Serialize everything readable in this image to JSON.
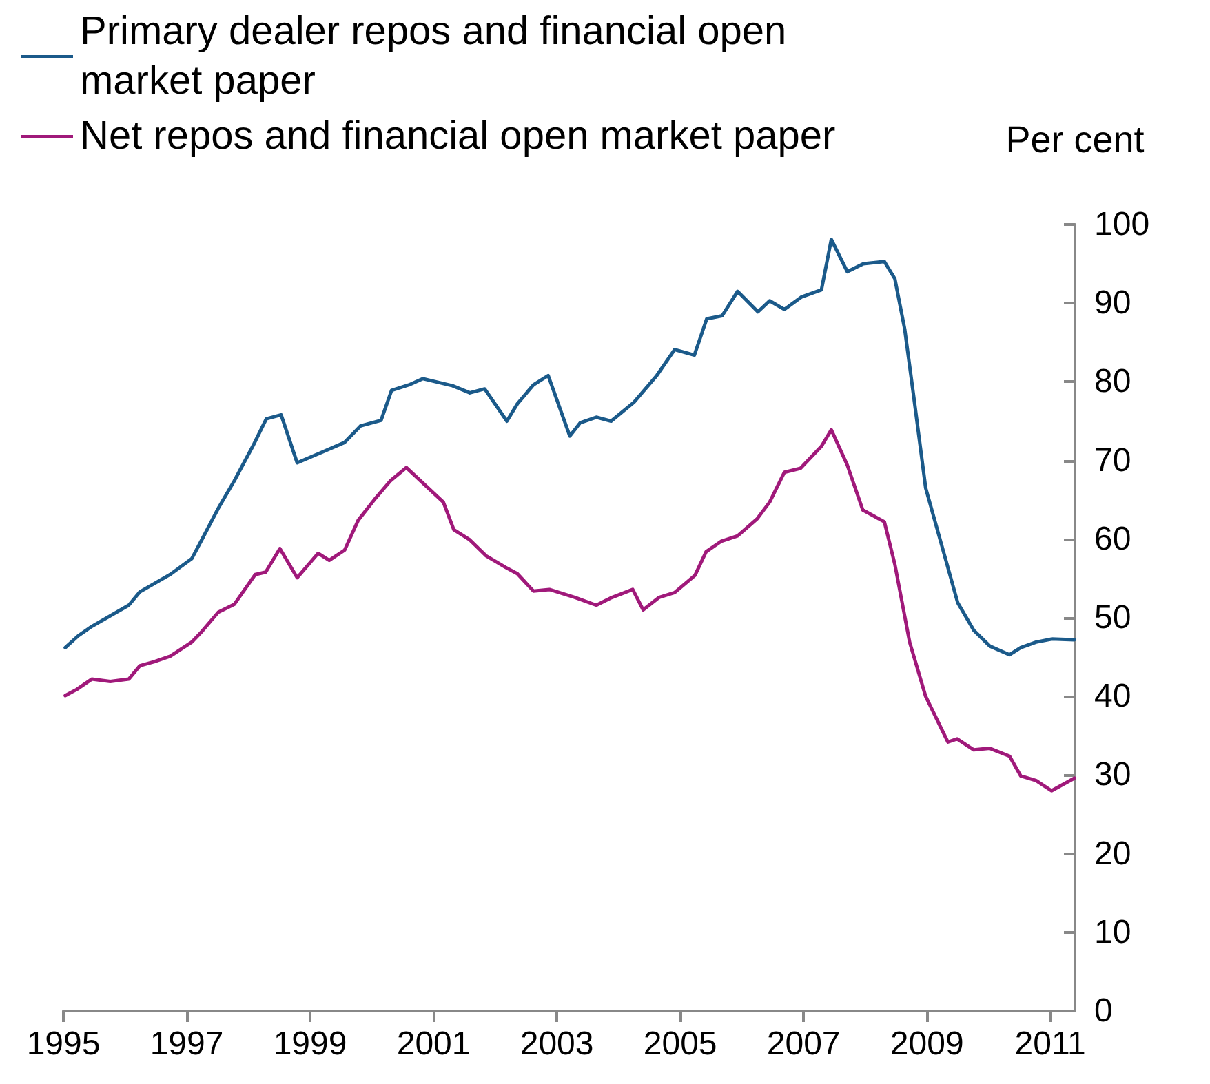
{
  "chart_data": {
    "type": "line",
    "ylabel": "Per cent",
    "xlim": [
      1995,
      2011.4
    ],
    "xticks": [
      1995,
      1997,
      1999,
      2001,
      2003,
      2005,
      2007,
      2009,
      2011
    ],
    "ylim": [
      0,
      100
    ],
    "yticks": [
      0,
      10,
      20,
      30,
      40,
      50,
      60,
      70,
      80,
      90,
      100
    ],
    "grid": false,
    "legend": "top left",
    "marker": "none",
    "line_style": "solid",
    "series": [
      {
        "name": "Primary dealer repos and financial open market paper",
        "color": "#1b5a8a",
        "x": [
          1995.03,
          1995.24,
          1995.46,
          1996.06,
          1996.24,
          1996.73,
          1997.08,
          1997.25,
          1997.51,
          1997.77,
          1998.07,
          1998.29,
          1998.53,
          1998.79,
          1999.15,
          1999.56,
          1999.82,
          2000.15,
          2000.32,
          2000.6,
          2000.83,
          2001.31,
          2001.59,
          2001.83,
          2002.19,
          2002.36,
          2002.62,
          2002.86,
          2003.21,
          2003.38,
          2003.64,
          2003.88,
          2004.25,
          2004.62,
          2004.91,
          2005.23,
          2005.43,
          2005.68,
          2005.93,
          2006.26,
          2006.45,
          2006.69,
          2006.97,
          2007.29,
          2007.45,
          2007.71,
          2007.97,
          2008.31,
          2008.48,
          2008.64,
          2008.79,
          2008.98,
          2009.24,
          2009.5,
          2009.76,
          2010.02,
          2010.34,
          2010.52,
          2010.77,
          2011.02,
          2011.39
        ],
        "values": [
          46.2,
          47.7,
          48.9,
          51.6,
          53.3,
          55.5,
          57.5,
          60.0,
          63.9,
          67.4,
          71.8,
          75.3,
          75.8,
          69.7,
          70.9,
          72.3,
          74.4,
          75.1,
          78.9,
          79.6,
          80.4,
          79.5,
          78.6,
          79.1,
          75.0,
          77.2,
          79.6,
          80.8,
          73.1,
          74.8,
          75.5,
          75.0,
          77.4,
          80.8,
          84.1,
          83.4,
          88.0,
          88.4,
          91.5,
          88.9,
          90.3,
          89.2,
          90.8,
          91.7,
          98.1,
          94.0,
          95.0,
          95.3,
          93.1,
          86.7,
          77.9,
          66.5,
          59.2,
          51.9,
          48.4,
          46.4,
          45.3,
          46.2,
          46.9,
          47.3,
          47.2
        ]
      },
      {
        "name": "Net repos and financial open market paper",
        "color": "#a0197a",
        "x": [
          1995.03,
          1995.22,
          1995.46,
          1995.76,
          1996.06,
          1996.24,
          1996.47,
          1996.73,
          1997.08,
          1997.25,
          1997.51,
          1997.77,
          1998.11,
          1998.28,
          1998.51,
          1998.79,
          1999.13,
          1999.31,
          1999.56,
          1999.78,
          2000.04,
          2000.3,
          2000.56,
          2001.16,
          2001.33,
          2001.59,
          2001.85,
          2002.17,
          2002.36,
          2002.62,
          2002.88,
          2003.29,
          2003.64,
          2003.87,
          2004.23,
          2004.4,
          2004.66,
          2004.91,
          2005.24,
          2005.42,
          2005.66,
          2005.93,
          2006.25,
          2006.45,
          2006.69,
          2006.95,
          2007.29,
          2007.45,
          2007.71,
          2007.96,
          2008.31,
          2008.48,
          2008.72,
          2008.98,
          2009.34,
          2009.49,
          2009.76,
          2010.02,
          2010.34,
          2010.52,
          2010.77,
          2011.02,
          2011.39
        ],
        "values": [
          40.1,
          40.9,
          42.2,
          41.9,
          42.2,
          43.9,
          44.4,
          45.1,
          46.9,
          48.3,
          50.7,
          51.7,
          55.5,
          55.8,
          58.8,
          55.1,
          58.2,
          57.3,
          58.6,
          62.4,
          65.0,
          67.4,
          69.1,
          64.7,
          61.2,
          59.9,
          57.9,
          56.4,
          55.6,
          53.4,
          53.6,
          52.6,
          51.6,
          52.5,
          53.6,
          51.0,
          52.6,
          53.2,
          55.4,
          58.4,
          59.7,
          60.4,
          62.6,
          64.7,
          68.5,
          69.0,
          71.8,
          73.9,
          69.4,
          63.7,
          62.2,
          56.8,
          46.9,
          40.0,
          34.2,
          34.6,
          33.2,
          33.4,
          32.4,
          29.9,
          29.3,
          28.0,
          29.6
        ]
      }
    ]
  }
}
